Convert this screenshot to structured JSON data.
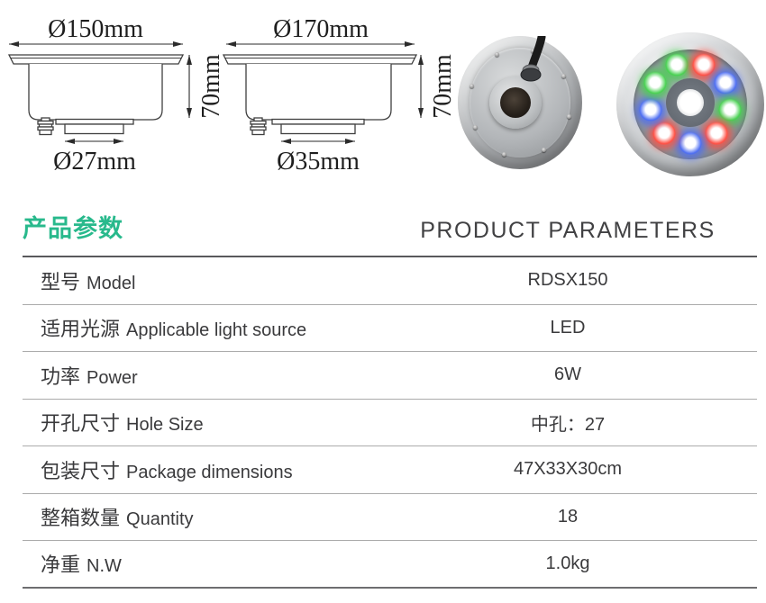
{
  "page": {
    "background": "#ffffff"
  },
  "drawings": [
    {
      "top_diameter": "Ø150mm",
      "height_label": "70mm",
      "bottom_diameter": "Ø27mm"
    },
    {
      "top_diameter": "Ø170mm",
      "height_label": "70mm",
      "bottom_diameter": "Ø35mm"
    }
  ],
  "photos": {
    "back_view": {
      "cable_color": "#1b1b1b"
    },
    "front_view": {
      "led_colors": [
        "#49d152",
        "#ff5044",
        "#4e6ef2",
        "#49d152",
        "#ff5044",
        "#4e6ef2",
        "#ff5044",
        "#4e6ef2",
        "#49d152"
      ]
    }
  },
  "section_header": {
    "title_zh": "产品参数",
    "title_en": "PRODUCT PARAMETERS",
    "accent_color": "#28b98c"
  },
  "table": {
    "rows": [
      {
        "label_zh": "型号",
        "label_en": "Model",
        "value": "RDSX150"
      },
      {
        "label_zh": "适用光源",
        "label_en": "Applicable light source",
        "value": "LED"
      },
      {
        "label_zh": "功率",
        "label_en": "Power",
        "value": "6W"
      },
      {
        "label_zh": "开孔尺寸",
        "label_en": "Hole Size",
        "value": "中孔：27"
      },
      {
        "label_zh": "包装尺寸",
        "label_en": "Package dimensions",
        "value": "47X33X30cm"
      },
      {
        "label_zh": "整箱数量",
        "label_en": "Quantity",
        "value": "18"
      },
      {
        "label_zh": "净重",
        "label_en": "N.W",
        "value": "1.0kg"
      }
    ]
  }
}
